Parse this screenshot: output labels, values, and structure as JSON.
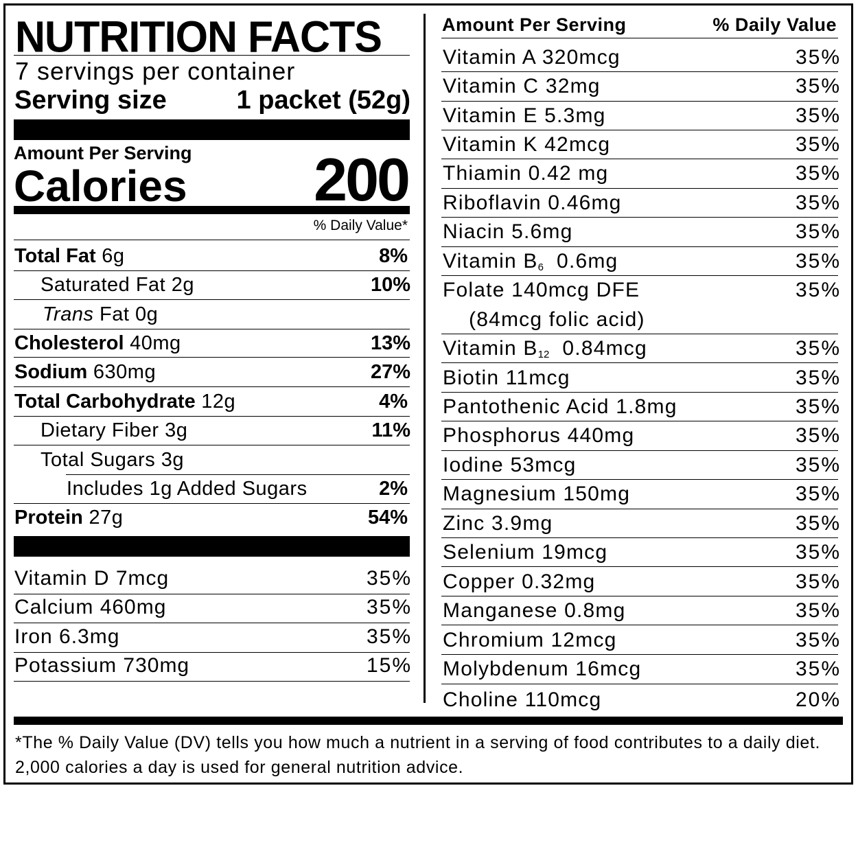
{
  "title": "NUTRITION FACTS",
  "servings_per_container": "7 servings per container",
  "serving_size_label": "Serving size",
  "serving_size_value": "1 packet (52g)",
  "amount_per_serving": "Amount Per Serving",
  "calories_label": "Calories",
  "calories_value": "200",
  "daily_value_header": "% Daily Value*",
  "nutrients": [
    {
      "name": "Total Fat",
      "amount": "6g",
      "dv": "8%"
    },
    {
      "name": "Saturated Fat",
      "amount": "2g",
      "dv": "10%"
    },
    {
      "name": "Trans",
      "suffix": "Fat 0g",
      "dv": ""
    },
    {
      "name": "Cholesterol",
      "amount": "40mg",
      "dv": "13%"
    },
    {
      "name": "Sodium",
      "amount": "630mg",
      "dv": "27%"
    },
    {
      "name": "Total Carbohydrate",
      "amount": "12g",
      "dv": "4%"
    },
    {
      "name": "Dietary Fiber",
      "amount": "3g",
      "dv": "11%"
    },
    {
      "name": "Total Sugars",
      "amount": "3g",
      "dv": ""
    },
    {
      "name": "Includes 1g Added Sugars",
      "amount": "",
      "dv": "2%"
    },
    {
      "name": "Protein",
      "amount": "27g",
      "dv": "54%"
    }
  ],
  "minerals_left": [
    {
      "text": "Vitamin D 7mcg",
      "dv": "35%"
    },
    {
      "text": "Calcium 460mg",
      "dv": "35%"
    },
    {
      "text": "Iron 6.3mg",
      "dv": "35%"
    },
    {
      "text": "Potassium 730mg",
      "dv": "15%"
    }
  ],
  "right_header": {
    "left": "Amount Per Serving",
    "right": "% Daily Value"
  },
  "vitamins_right": [
    {
      "text": "Vitamin A  320mcg",
      "dv": "35%"
    },
    {
      "text": "Vitamin C  32mg",
      "dv": "35%"
    },
    {
      "text": "Vitamin E  5.3mg",
      "dv": "35%"
    },
    {
      "text": "Vitamin K  42mcg",
      "dv": "35%"
    },
    {
      "text": "Thiamin  0.42 mg",
      "dv": "35%"
    },
    {
      "text": "Riboflavin  0.46mg",
      "dv": "35%"
    },
    {
      "text": "Niacin  5.6mg",
      "dv": "35%"
    },
    {
      "text": "Vitamin B",
      "sub": "6",
      "after": "  0.6mg",
      "dv": "35%"
    },
    {
      "text": "Folate  140mcg DFE",
      "line2": "(84mcg folic acid)",
      "dv": "35%"
    },
    {
      "text": "Vitamin B",
      "sub": "12",
      "after": "  0.84mcg",
      "dv": "35%"
    },
    {
      "text": "Biotin  11mcg",
      "dv": "35%"
    },
    {
      "text": "Pantothenic Acid  1.8mg",
      "dv": "35%"
    },
    {
      "text": "Phosphorus  440mg",
      "dv": "35%"
    },
    {
      "text": "Iodine  53mcg",
      "dv": "35%"
    },
    {
      "text": "Magnesium  150mg",
      "dv": "35%"
    },
    {
      "text": "Zinc  3.9mg",
      "dv": "35%"
    },
    {
      "text": "Selenium  19mcg",
      "dv": "35%"
    },
    {
      "text": "Copper  0.32mg",
      "dv": "35%"
    },
    {
      "text": "Manganese  0.8mg",
      "dv": "35%"
    },
    {
      "text": "Chromium  12mcg",
      "dv": "35%"
    },
    {
      "text": "Molybdenum  16mcg",
      "dv": "35%"
    },
    {
      "text": "Choline  110mcg",
      "dv": "20%"
    }
  ],
  "footnote": "*The % Daily Value (DV) tells you how much a nutrient in a serving of food contributes to a daily diet. 2,000 calories a day is used for general nutrition advice."
}
